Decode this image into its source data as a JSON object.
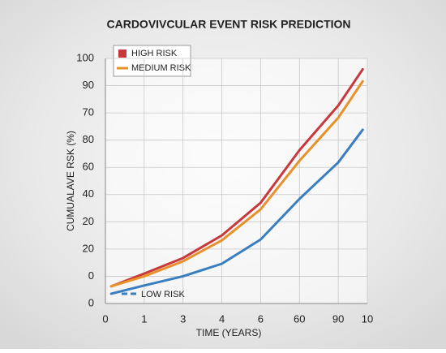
{
  "chart_data": {
    "type": "line",
    "title": "CARDOVIVCULAR EVENT RISK PREDICTION",
    "x_label": "TIME (YEARS)",
    "y_label": "CUMUALAVE RSK (%)",
    "xlim": [
      0,
      6.75
    ],
    "ylim": [
      0,
      9
    ],
    "xticks": [
      {
        "value": 0,
        "label": "0"
      },
      {
        "value": 1,
        "label": "1"
      },
      {
        "value": 2,
        "label": "3"
      },
      {
        "value": 3,
        "label": "4"
      },
      {
        "value": 4,
        "label": "6"
      },
      {
        "value": 5,
        "label": "60"
      },
      {
        "value": 6,
        "label": "90"
      },
      {
        "value": 6.75,
        "label": "10"
      }
    ],
    "yticks": [
      {
        "value": 0,
        "label": "0"
      },
      {
        "value": 1,
        "label": "0"
      },
      {
        "value": 2,
        "label": "20"
      },
      {
        "value": 3,
        "label": "20"
      },
      {
        "value": 4,
        "label": "40"
      },
      {
        "value": 5,
        "label": "60"
      },
      {
        "value": 6,
        "label": "80"
      },
      {
        "value": 7,
        "label": "70"
      },
      {
        "value": 8,
        "label": "90"
      },
      {
        "value": 9,
        "label": "100"
      }
    ],
    "x": [
      0.15,
      1,
      2,
      3,
      4,
      5,
      6,
      6.63
    ],
    "series": [
      {
        "name": "HIGH RISK",
        "color": "#c8383a",
        "values": [
          0.63,
          1.1,
          1.67,
          2.5,
          3.7,
          5.63,
          7.27,
          8.6
        ]
      },
      {
        "name": "MEDIUM RISK",
        "color": "#e8902a",
        "values": [
          0.63,
          1.0,
          1.55,
          2.32,
          3.46,
          5.24,
          6.82,
          8.16
        ]
      },
      {
        "name": "LOW RISK",
        "color": "#3a7ebf",
        "values": [
          0.36,
          0.66,
          1.0,
          1.46,
          2.35,
          3.84,
          5.18,
          6.38
        ]
      }
    ],
    "grid": true
  }
}
